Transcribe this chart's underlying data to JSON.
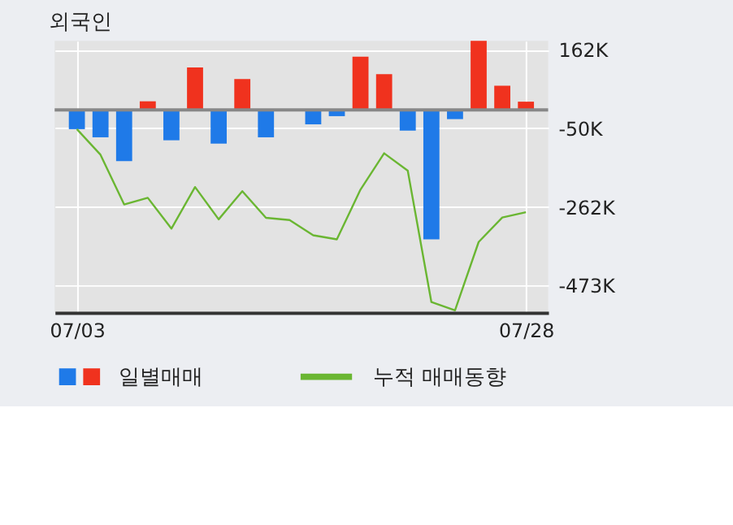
{
  "chart_data": {
    "type": "bar",
    "title": "외국인",
    "categories": [
      "07/03",
      null,
      null,
      null,
      null,
      null,
      null,
      null,
      null,
      null,
      null,
      null,
      null,
      null,
      null,
      null,
      null,
      null,
      null,
      "07/28"
    ],
    "series": [
      {
        "name": "일별매매",
        "colors": [
          "#1f7ae8",
          "#1f7ae8",
          "#1f7ae8",
          "#f0321e",
          "#1f7ae8",
          "#f0321e",
          "#1f7ae8",
          "#f0321e",
          "#1f7ae8",
          "#1f7ae8",
          "#1f7ae8",
          "#1f7ae8",
          "#f0321e",
          "#f0321e",
          "#1f7ae8",
          "#1f7ae8",
          "#1f7ae8",
          "#f0321e",
          "#f0321e",
          "#f0321e"
        ],
        "values": [
          -52000,
          -74000,
          -138000,
          23000,
          -82000,
          114000,
          -91000,
          83000,
          -74000,
          0,
          -39000,
          -17000,
          143000,
          96000,
          -56000,
          -349000,
          -25000,
          186000,
          65000,
          22000
        ]
      },
      {
        "name": "누적 매매동향",
        "type": "line",
        "color": "#6ab632",
        "values": [
          -52000,
          -121000,
          -255000,
          -237000,
          -320000,
          -208000,
          -295000,
          -219000,
          -291000,
          -297000,
          -338000,
          -349000,
          -215000,
          -117000,
          -164000,
          -518000,
          -540000,
          -356000,
          -290000,
          -276000
        ]
      }
    ],
    "ylim": [
      -546000,
      186000
    ],
    "yticks": [
      {
        "value": 162000,
        "label": "162K"
      },
      {
        "value": -50000,
        "label": "-50K"
      },
      {
        "value": -262000,
        "label": "-262K"
      },
      {
        "value": -473000,
        "label": "-473K"
      }
    ],
    "ref_lines": [
      {
        "axis": "y",
        "value": 0,
        "color": "#888888"
      }
    ],
    "grid": true,
    "legend": "bottom"
  }
}
